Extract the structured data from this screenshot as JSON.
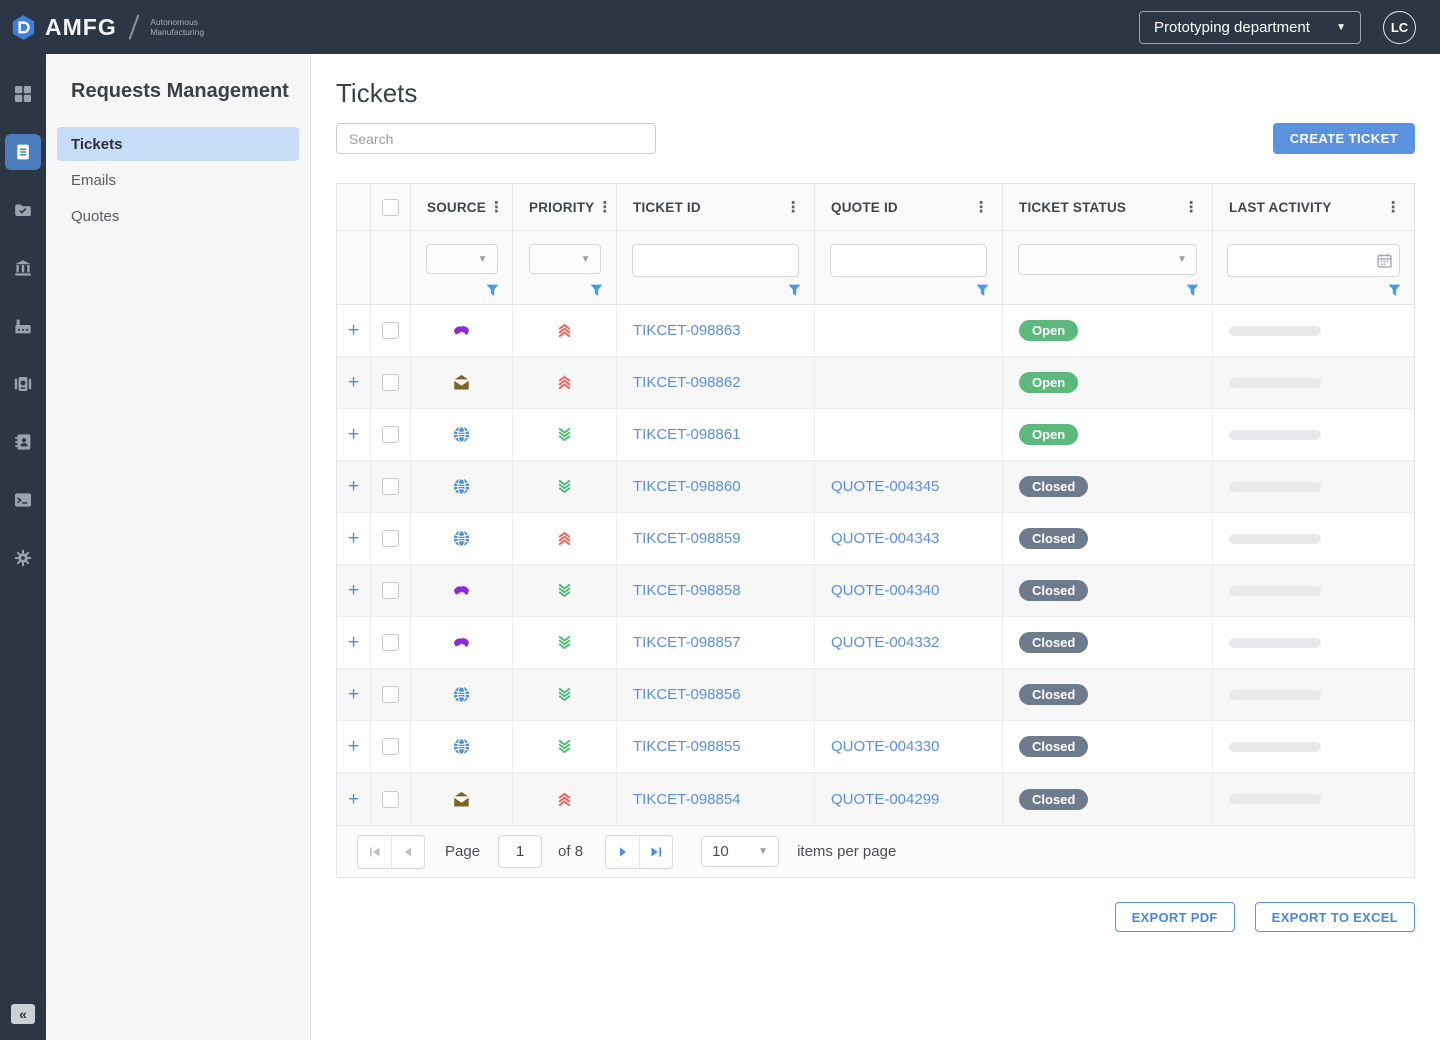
{
  "topbar": {
    "logo_text": "AMFG",
    "logo_subtext": "Autonomous Manufacturing",
    "department_selector": "Prototyping department",
    "avatar_initials": "LC"
  },
  "sidebar": {
    "items": [
      {
        "name": "dashboard",
        "active": false
      },
      {
        "name": "tickets",
        "active": true
      },
      {
        "name": "orders-folder",
        "active": false
      },
      {
        "name": "organization",
        "active": false
      },
      {
        "name": "production",
        "active": false
      },
      {
        "name": "machines",
        "active": false
      },
      {
        "name": "contacts",
        "active": false
      },
      {
        "name": "console",
        "active": false
      },
      {
        "name": "settings",
        "active": false
      }
    ],
    "collapse_glyph": "«"
  },
  "nav_panel": {
    "title": "Requests Management",
    "items": [
      {
        "label": "Tickets",
        "active": true
      },
      {
        "label": "Emails",
        "active": false
      },
      {
        "label": "Quotes",
        "active": false
      }
    ]
  },
  "main": {
    "title": "Tickets",
    "search": {
      "placeholder": "Search"
    },
    "create_button": "CREATE TICKET",
    "table": {
      "columns": [
        "SOURCE",
        "PRIORITY",
        "TICKET ID",
        "QUOTE ID",
        "TICKET STATUS",
        "LAST ACTIVITY"
      ],
      "rows": [
        {
          "source": "handshake",
          "priority": "high",
          "ticket_id": "TIKCET-098863",
          "quote_id": "",
          "status": "Open"
        },
        {
          "source": "email",
          "priority": "high",
          "ticket_id": "TIKCET-098862",
          "quote_id": "",
          "status": "Open"
        },
        {
          "source": "web",
          "priority": "low",
          "ticket_id": "TIKCET-098861",
          "quote_id": "",
          "status": "Open"
        },
        {
          "source": "web",
          "priority": "low",
          "ticket_id": "TIKCET-098860",
          "quote_id": "QUOTE-004345",
          "status": "Closed"
        },
        {
          "source": "web",
          "priority": "high",
          "ticket_id": "TIKCET-098859",
          "quote_id": "QUOTE-004343",
          "status": "Closed"
        },
        {
          "source": "handshake",
          "priority": "low",
          "ticket_id": "TIKCET-098858",
          "quote_id": "QUOTE-004340",
          "status": "Closed"
        },
        {
          "source": "handshake",
          "priority": "low",
          "ticket_id": "TIKCET-098857",
          "quote_id": "QUOTE-004332",
          "status": "Closed"
        },
        {
          "source": "web",
          "priority": "low",
          "ticket_id": "TIKCET-098856",
          "quote_id": "",
          "status": "Closed"
        },
        {
          "source": "web",
          "priority": "low",
          "ticket_id": "TIKCET-098855",
          "quote_id": "QUOTE-004330",
          "status": "Closed"
        },
        {
          "source": "email",
          "priority": "high",
          "ticket_id": "TIKCET-098854",
          "quote_id": "QUOTE-004299",
          "status": "Closed"
        }
      ]
    },
    "pagination": {
      "page_label": "Page",
      "current_page": "1",
      "of_label": "of",
      "total_pages": "8",
      "page_size": "10",
      "items_label": "items per page"
    },
    "export": {
      "pdf_label": "EXPORT PDF",
      "excel_label": "EXPORT TO EXCEL"
    }
  },
  "colors": {
    "brand_dark": "#2c3644",
    "accent_blue": "#5b92e0",
    "link_blue": "#5b8fd9",
    "status_open": "#5cb87c",
    "status_closed": "#6e7b8c",
    "priority_high": "#ee6860",
    "priority_low": "#57bd7f",
    "source_web": "#4a90d9",
    "source_handshake": "#8f2bd6",
    "source_email": "#7d6426"
  }
}
